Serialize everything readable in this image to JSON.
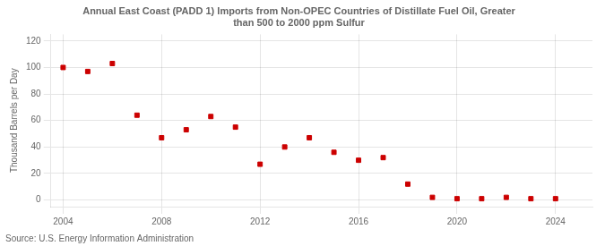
{
  "chart_data": {
    "type": "scatter",
    "title": "Annual East Coast (PADD 1) Imports from Non-OPEC Countries of Distillate Fuel Oil, Greater\nthan 500 to 2000 ppm Sulfur",
    "ylabel": "Thousand Barrels per Day",
    "annotations": [
      "Source: U.S. Energy Information Administration"
    ],
    "color": "#cc0000",
    "marker": "square",
    "grid": true,
    "x": [
      2004,
      2005,
      2006,
      2007,
      2008,
      2009,
      2010,
      2011,
      2012,
      2013,
      2014,
      2015,
      2016,
      2017,
      2018,
      2019,
      2020,
      2021,
      2022,
      2023,
      2024
    ],
    "values": [
      100,
      97,
      103,
      64,
      47,
      53,
      63,
      55,
      27,
      40,
      47,
      36,
      30,
      32,
      12,
      2,
      1,
      1,
      2,
      1,
      1
    ],
    "xlim": [
      2003.5,
      2025.5
    ],
    "xticks": [
      2004,
      2008,
      2012,
      2016,
      2020,
      2024
    ],
    "ylim": [
      -5,
      125
    ],
    "yticks": [
      0,
      20,
      40,
      60,
      80,
      100,
      120
    ]
  }
}
